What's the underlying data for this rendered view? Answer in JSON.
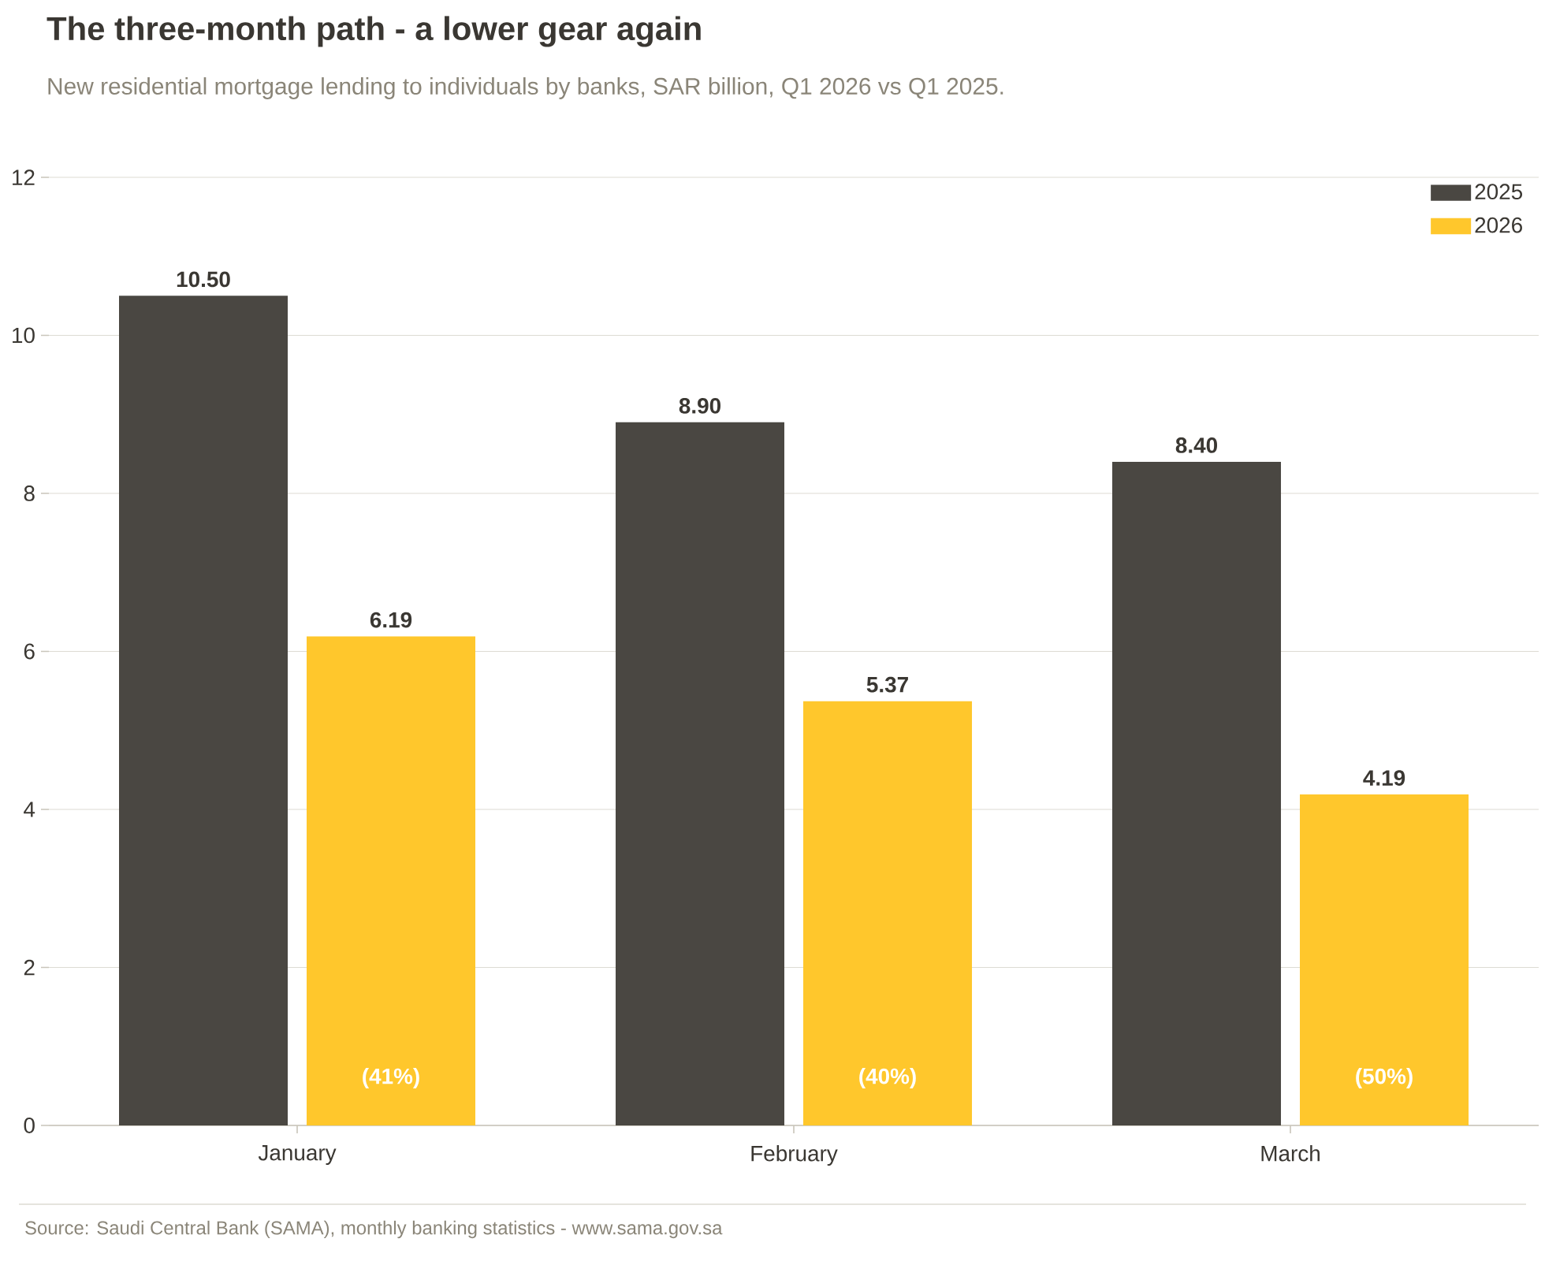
{
  "chart_data": {
    "type": "bar",
    "title": "The three-month path - a lower gear again",
    "subtitle": "New residential mortgage lending to individuals by banks, SAR billion, Q1 2026 vs Q1 2025.",
    "categories": [
      "January",
      "February",
      "March"
    ],
    "series": [
      {
        "name": "2025",
        "color": "#4a4742",
        "values": [
          10.5,
          8.9,
          8.4
        ],
        "value_labels": [
          "10.50",
          "8.90",
          "8.40"
        ]
      },
      {
        "name": "2026",
        "color": "#ffc72c",
        "values": [
          6.19,
          5.37,
          4.19
        ],
        "value_labels": [
          "6.19",
          "5.37",
          "4.19"
        ]
      }
    ],
    "ylim": [
      0,
      12
    ],
    "yticks": [
      0,
      2,
      4,
      6,
      8,
      10,
      12
    ],
    "grid": "y",
    "legend": "top right",
    "annotations": [
      "(41%)",
      "(40%)",
      "(50%)",
      "Source: Saudi Central Bank (SAMA), monthly banking statistics  -  www.sama.gov.sa"
    ]
  }
}
